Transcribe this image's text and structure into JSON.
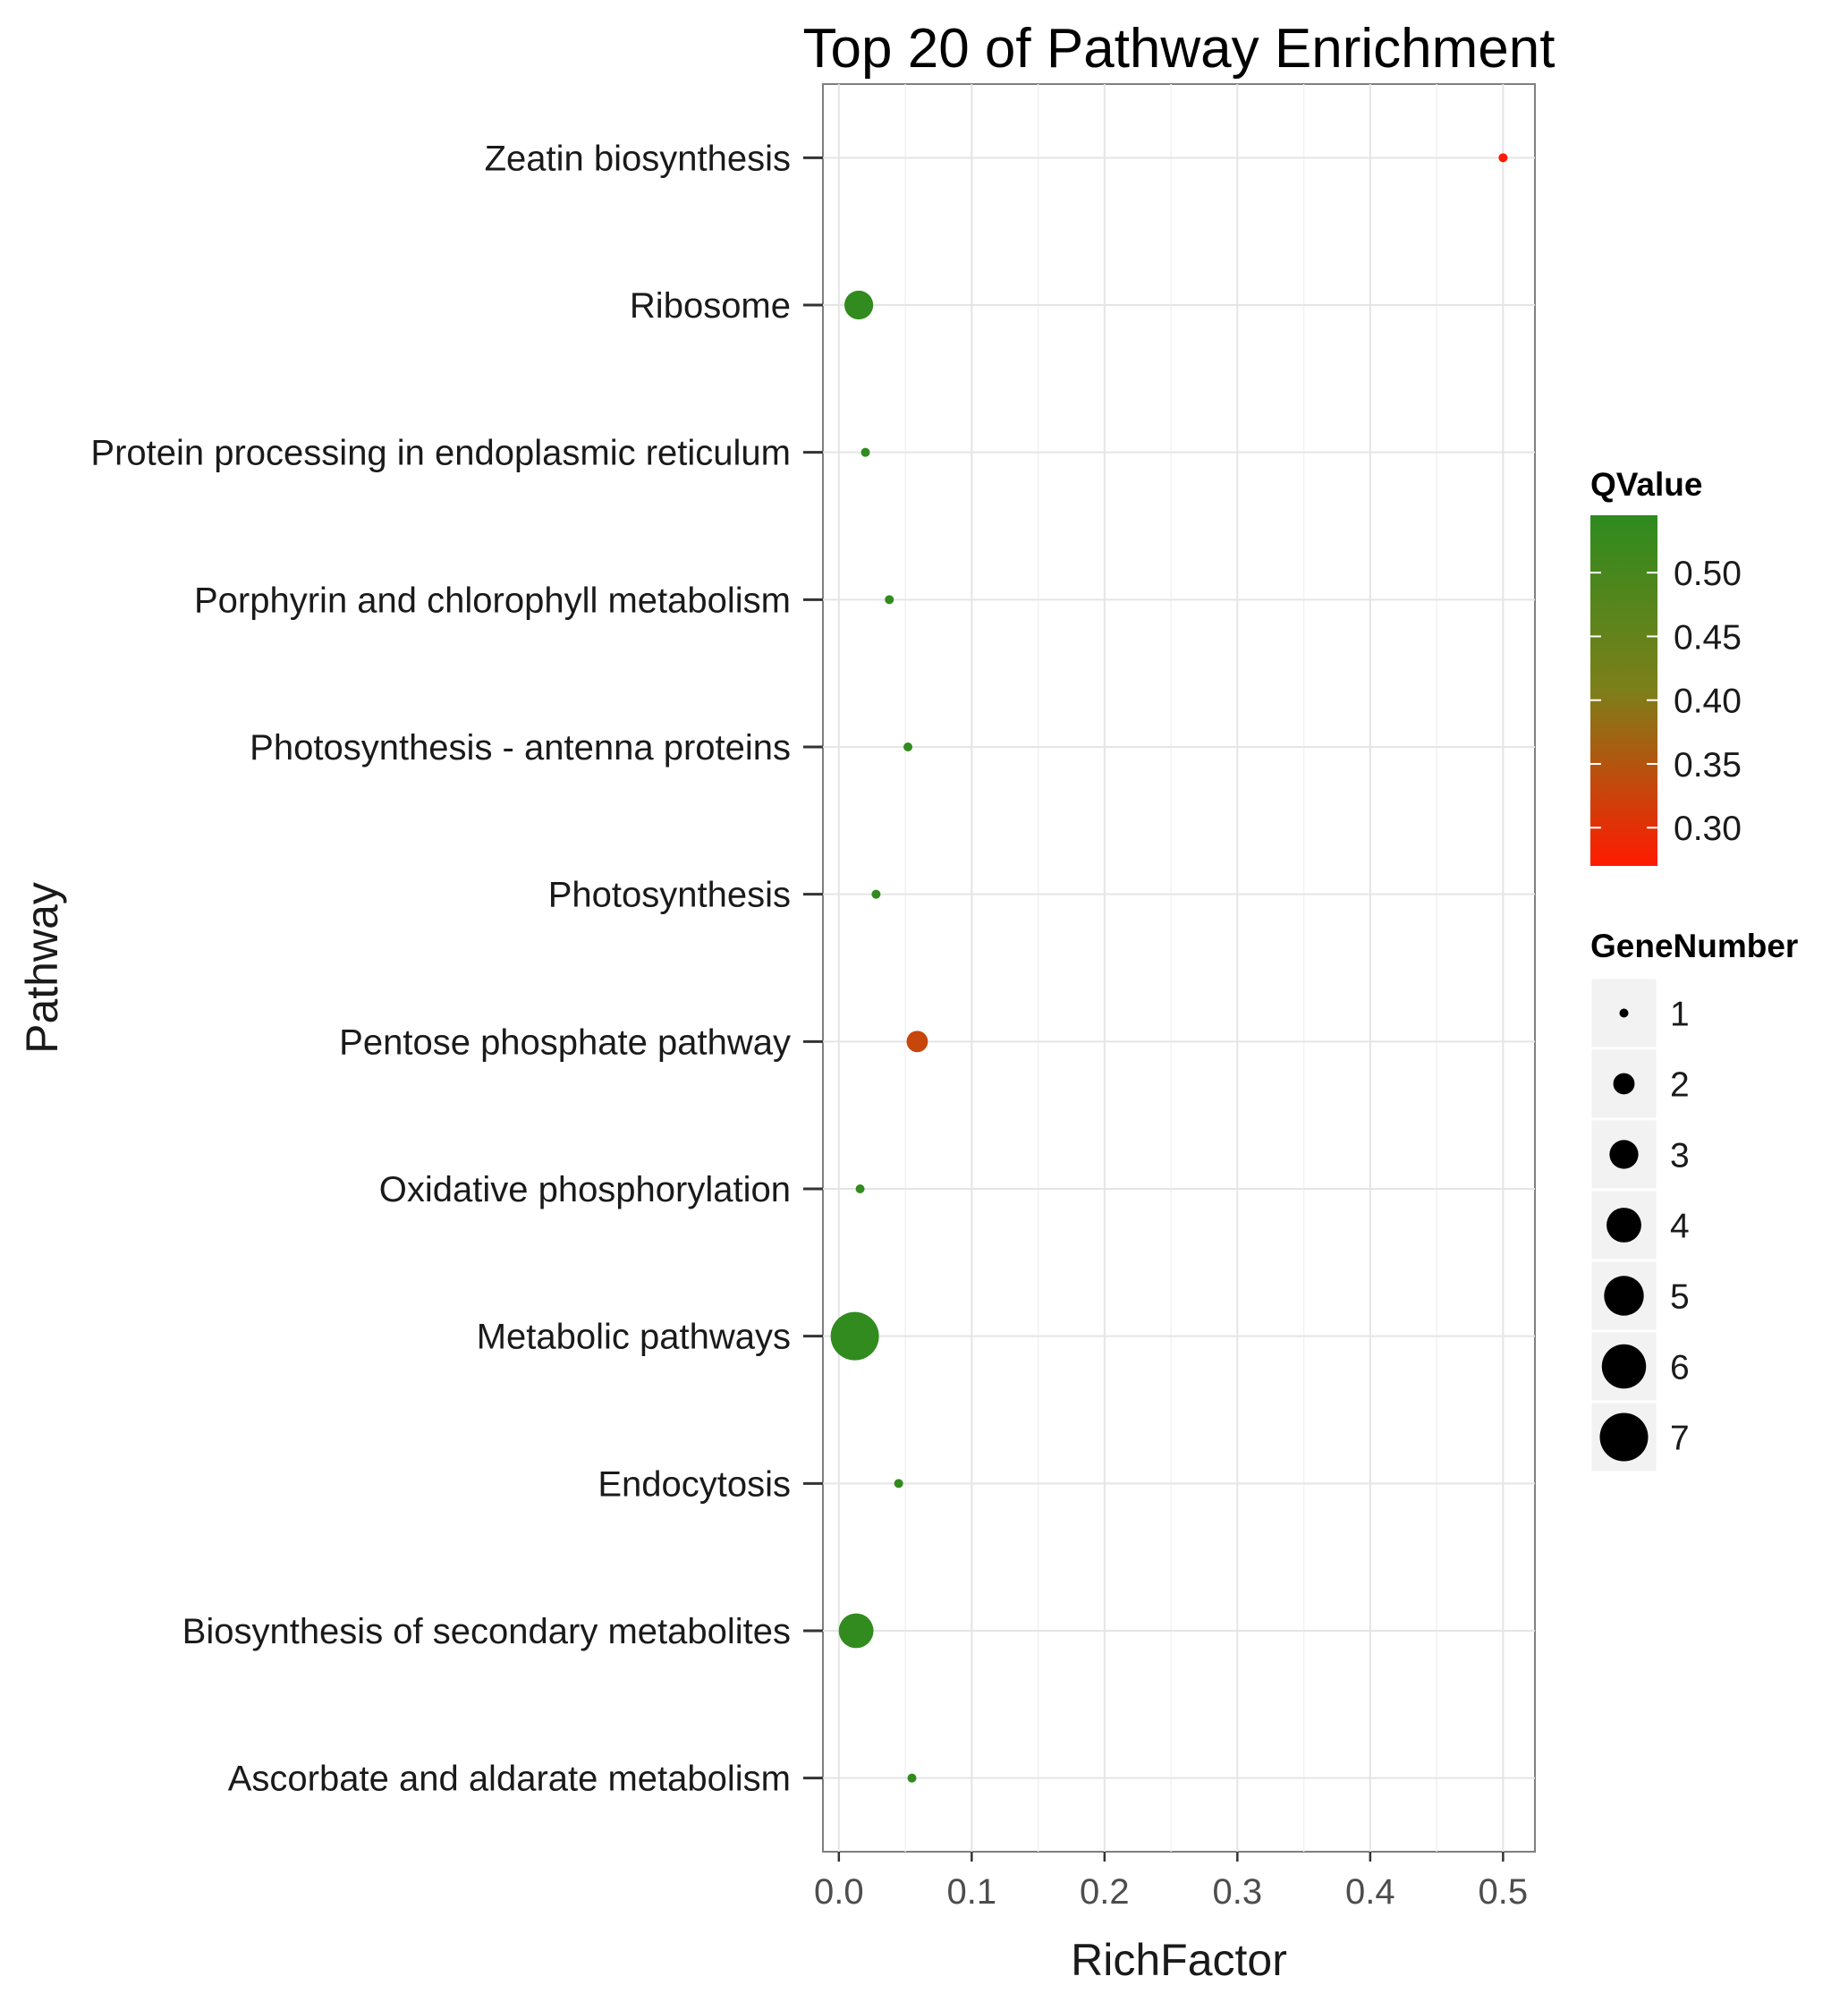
{
  "chart_data": {
    "type": "scatter",
    "title": "Top 20 of Pathway Enrichment",
    "xlabel": "RichFactor",
    "ylabel": "Pathway",
    "xlim": [
      -0.012,
      0.524
    ],
    "x_ticks": [
      0.0,
      0.1,
      0.2,
      0.3,
      0.4,
      0.5
    ],
    "x_tick_labels": [
      "0.0",
      "0.1",
      "0.2",
      "0.3",
      "0.4",
      "0.5"
    ],
    "grid": true,
    "categories": [
      "Zeatin biosynthesis",
      "Ribosome",
      "Protein processing in endoplasmic reticulum",
      "Porphyrin and chlorophyll metabolism",
      "Photosynthesis - antenna proteins",
      "Photosynthesis",
      "Pentose phosphate pathway",
      "Oxidative phosphorylation",
      "Metabolic pathways",
      "Endocytosis",
      "Biosynthesis of secondary metabolites",
      "Ascorbate and aldarate metabolism"
    ],
    "points": [
      {
        "pathway": "Zeatin biosynthesis",
        "rich_factor": 0.5,
        "qvalue": 0.27,
        "gene_number": 1
      },
      {
        "pathway": "Ribosome",
        "rich_factor": 0.015,
        "qvalue": 0.54,
        "gene_number": 3
      },
      {
        "pathway": "Protein processing in endoplasmic reticulum",
        "rich_factor": 0.02,
        "qvalue": 0.54,
        "gene_number": 1
      },
      {
        "pathway": "Porphyrin and chlorophyll metabolism",
        "rich_factor": 0.038,
        "qvalue": 0.54,
        "gene_number": 1
      },
      {
        "pathway": "Photosynthesis - antenna proteins",
        "rich_factor": 0.052,
        "qvalue": 0.54,
        "gene_number": 1
      },
      {
        "pathway": "Photosynthesis",
        "rich_factor": 0.028,
        "qvalue": 0.54,
        "gene_number": 1
      },
      {
        "pathway": "Pentose phosphate pathway",
        "rich_factor": 0.059,
        "qvalue": 0.33,
        "gene_number": 2
      },
      {
        "pathway": "Oxidative phosphorylation",
        "rich_factor": 0.016,
        "qvalue": 0.54,
        "gene_number": 1
      },
      {
        "pathway": "Metabolic pathways",
        "rich_factor": 0.012,
        "qvalue": 0.54,
        "gene_number": 7
      },
      {
        "pathway": "Endocytosis",
        "rich_factor": 0.045,
        "qvalue": 0.54,
        "gene_number": 1
      },
      {
        "pathway": "Biosynthesis of secondary metabolites",
        "rich_factor": 0.013,
        "qvalue": 0.54,
        "gene_number": 4
      },
      {
        "pathway": "Ascorbate and aldarate metabolism",
        "rich_factor": 0.055,
        "qvalue": 0.54,
        "gene_number": 1
      }
    ],
    "color_legend": {
      "title": "QValue",
      "ticks": [
        0.5,
        0.45,
        0.4,
        0.35,
        0.3
      ],
      "tick_labels": [
        "0.50",
        "0.45",
        "0.40",
        "0.35",
        "0.30"
      ],
      "range": [
        0.27,
        0.545
      ],
      "low_color": "#ff1a00",
      "mid_color": "#7d7f1a",
      "high_color": "#2e8b1e"
    },
    "size_legend": {
      "title": "GeneNumber",
      "values": [
        1,
        2,
        3,
        4,
        5,
        6,
        7
      ],
      "labels": [
        "1",
        "2",
        "3",
        "4",
        "5",
        "6",
        "7"
      ]
    },
    "legend_position": "right"
  }
}
